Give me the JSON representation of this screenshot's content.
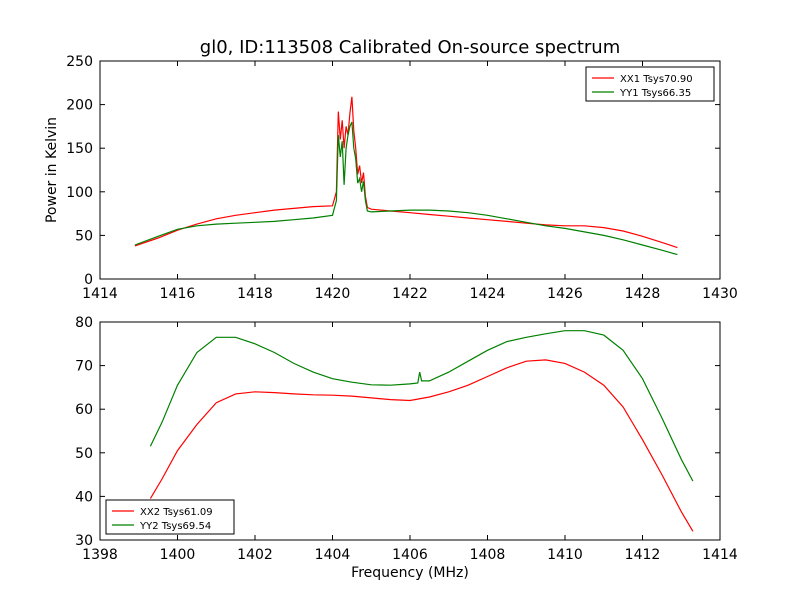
{
  "figure": {
    "title": "gl0, ID:113508 Calibrated On-source spectrum"
  },
  "chart_data": [
    {
      "type": "line",
      "title": "gl0, ID:113508 Calibrated On-source spectrum",
      "xlabel": "",
      "ylabel": "Power in Kelvin",
      "xlim": [
        1414,
        1430
      ],
      "ylim": [
        0,
        250
      ],
      "xticks": [
        1414,
        1416,
        1418,
        1420,
        1422,
        1424,
        1426,
        1428,
        1430
      ],
      "yticks": [
        0,
        50,
        100,
        150,
        200,
        250
      ],
      "grid": false,
      "legend_position": "top-right",
      "series": [
        {
          "name": "XX1 Tsys70.90",
          "color": "#ff0000",
          "x": [
            1414.9,
            1415.5,
            1416.0,
            1416.5,
            1417.0,
            1417.5,
            1418.0,
            1418.5,
            1419.0,
            1419.5,
            1420.0,
            1420.1,
            1420.15,
            1420.2,
            1420.25,
            1420.3,
            1420.35,
            1420.4,
            1420.45,
            1420.5,
            1420.55,
            1420.6,
            1420.65,
            1420.7,
            1420.75,
            1420.8,
            1420.85,
            1420.9,
            1421.0,
            1421.5,
            1422.0,
            1422.5,
            1423.0,
            1423.5,
            1424.0,
            1424.5,
            1425.0,
            1425.5,
            1426.0,
            1426.5,
            1427.0,
            1427.5,
            1428.0,
            1428.5,
            1428.9
          ],
          "y": [
            38,
            47,
            56,
            63,
            69,
            73,
            76,
            79,
            81,
            83,
            84,
            100,
            192,
            160,
            182,
            150,
            175,
            165,
            190,
            209,
            170,
            150,
            120,
            130,
            110,
            122,
            95,
            82,
            80,
            78,
            76,
            74,
            72,
            70,
            68,
            66,
            64,
            62,
            61,
            61,
            59,
            55,
            49,
            42,
            36
          ]
        },
        {
          "name": "YY1 Tsys66.35",
          "color": "#008000",
          "x": [
            1414.9,
            1415.5,
            1416.0,
            1416.5,
            1417.0,
            1417.5,
            1418.0,
            1418.5,
            1419.0,
            1419.5,
            1420.0,
            1420.1,
            1420.15,
            1420.2,
            1420.25,
            1420.3,
            1420.35,
            1420.4,
            1420.45,
            1420.5,
            1420.55,
            1420.6,
            1420.65,
            1420.7,
            1420.75,
            1420.8,
            1420.85,
            1420.9,
            1421.0,
            1421.5,
            1422.0,
            1422.5,
            1423.0,
            1423.5,
            1424.0,
            1424.5,
            1425.0,
            1425.5,
            1426.0,
            1426.5,
            1427.0,
            1427.5,
            1428.0,
            1428.5,
            1428.9
          ],
          "y": [
            39,
            49,
            57,
            61,
            63,
            64,
            65,
            66,
            68,
            70,
            73,
            90,
            165,
            140,
            158,
            108,
            150,
            165,
            175,
            180,
            150,
            138,
            110,
            115,
            100,
            112,
            90,
            78,
            77,
            78,
            79,
            79,
            78,
            76,
            73,
            69,
            65,
            61,
            58,
            54,
            50,
            45,
            39,
            33,
            28
          ]
        }
      ]
    },
    {
      "type": "line",
      "title": "",
      "xlabel": "Frequency (MHz)",
      "ylabel": "",
      "xlim": [
        1398,
        1414
      ],
      "ylim": [
        30,
        80
      ],
      "xticks": [
        1398,
        1400,
        1402,
        1404,
        1406,
        1408,
        1410,
        1412,
        1414
      ],
      "yticks": [
        30,
        40,
        50,
        60,
        70,
        80
      ],
      "grid": false,
      "legend_position": "bottom-left",
      "series": [
        {
          "name": "XX2 Tsys61.09",
          "color": "#ff0000",
          "x": [
            1399.3,
            1399.6,
            1400.0,
            1400.5,
            1401.0,
            1401.5,
            1402.0,
            1402.5,
            1403.0,
            1403.5,
            1404.0,
            1404.5,
            1405.0,
            1405.5,
            1406.0,
            1406.5,
            1407.0,
            1407.5,
            1408.0,
            1408.5,
            1409.0,
            1409.5,
            1410.0,
            1410.5,
            1411.0,
            1411.5,
            1412.0,
            1412.5,
            1413.0,
            1413.3
          ],
          "y": [
            39.5,
            44,
            50.5,
            56.5,
            61.5,
            63.5,
            64.0,
            63.8,
            63.5,
            63.3,
            63.2,
            63.0,
            62.6,
            62.2,
            62.0,
            62.8,
            64.0,
            65.5,
            67.5,
            69.5,
            71.0,
            71.3,
            70.5,
            68.5,
            65.5,
            60.5,
            53.0,
            45.0,
            36.5,
            32.0
          ]
        },
        {
          "name": "YY2 Tsys69.54",
          "color": "#008000",
          "x": [
            1399.3,
            1399.6,
            1400.0,
            1400.5,
            1401.0,
            1401.5,
            1402.0,
            1402.5,
            1403.0,
            1403.5,
            1404.0,
            1404.5,
            1405.0,
            1405.5,
            1406.0,
            1406.2,
            1406.25,
            1406.3,
            1406.5,
            1407.0,
            1407.5,
            1408.0,
            1408.5,
            1409.0,
            1409.5,
            1410.0,
            1410.5,
            1411.0,
            1411.5,
            1412.0,
            1412.5,
            1413.0,
            1413.3
          ],
          "y": [
            51.5,
            57,
            65.5,
            73,
            76.5,
            76.5,
            75.0,
            73.0,
            70.5,
            68.5,
            67.0,
            66.2,
            65.6,
            65.5,
            65.8,
            66.0,
            68.5,
            66.5,
            66.5,
            68.5,
            71.0,
            73.5,
            75.5,
            76.5,
            77.3,
            78.0,
            78.0,
            77.0,
            73.5,
            67.0,
            58.0,
            48.5,
            43.5
          ]
        }
      ]
    }
  ]
}
